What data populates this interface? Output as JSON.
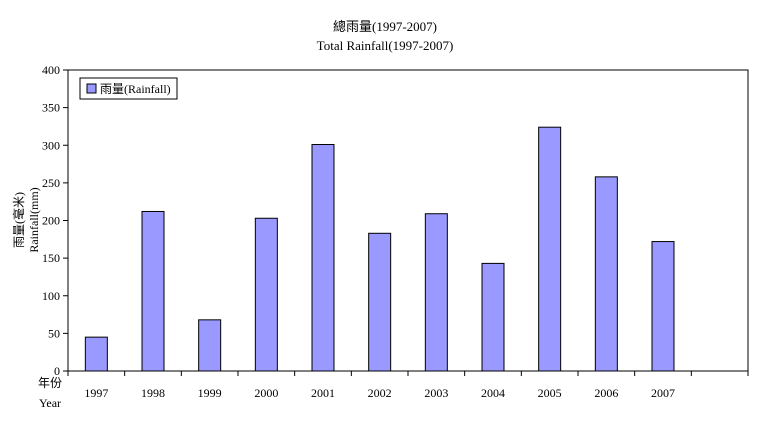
{
  "chart_data": {
    "type": "bar",
    "title": "總雨量(1997-2007)",
    "subtitle": "Total Rainfall(1997-2007)",
    "ylabel_zh": "雨量(毫米)",
    "ylabel_en": "Rainfall(mm)",
    "xlabel_zh": "年份",
    "xlabel_en": "Year",
    "categories": [
      "1997",
      "1998",
      "1999",
      "2000",
      "2001",
      "2002",
      "2003",
      "2004",
      "2005",
      "2006",
      "2007",
      ""
    ],
    "series": [
      {
        "name": "雨量(Rainfall)",
        "values": [
          45,
          212,
          68,
          203,
          301,
          183,
          209,
          143,
          324,
          258,
          172,
          null
        ]
      }
    ],
    "ylim": [
      0,
      400
    ],
    "yticks": [
      "0",
      "50",
      "100",
      "150",
      "200",
      "250",
      "300",
      "350",
      "400"
    ],
    "grid": false,
    "legend_position": "top-left",
    "colors": {
      "bar": "#9999ff",
      "bar_stroke": "#000000",
      "axis": "#000000"
    }
  }
}
